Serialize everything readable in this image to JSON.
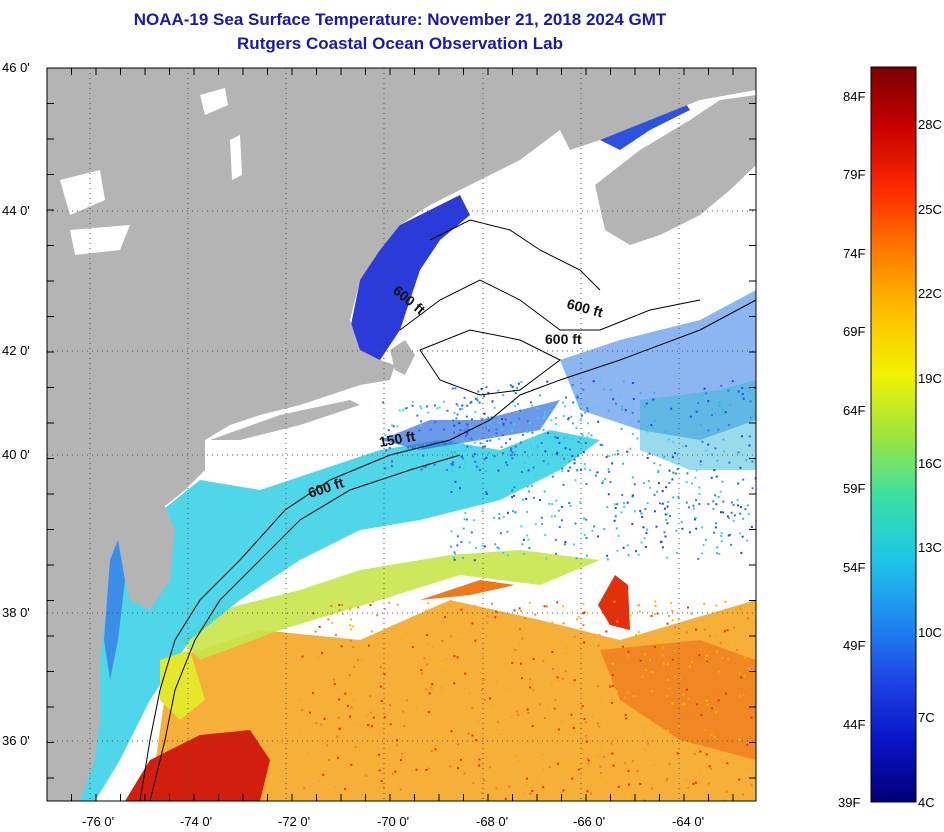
{
  "title": {
    "line1": "NOAA-19 Sea Surface Temperature:  November 21, 2018 2024 GMT",
    "line2": "Rutgers Coastal Ocean Observation Lab"
  },
  "map": {
    "latitude_labels": [
      "46 0'",
      "44 0'",
      "42 0'",
      "40 0'",
      "38 0'",
      "36 0'"
    ],
    "longitude_labels": [
      "-76 0'",
      "-74 0'",
      "-72 0'",
      "-70 0'",
      "-68 0'",
      "-66 0'",
      "-64 0'"
    ],
    "contour_labels": [
      "600 ft",
      "600 ft",
      "600 ft",
      "150 ft",
      "600 ft"
    ],
    "colors": {
      "land": "#b4b4b4",
      "no_data": "#ffffff",
      "cold": "#2b3bd9",
      "cool": "#31c8e8",
      "mid": "#8fe066",
      "warm": "#f5a623",
      "hot": "#e8300c",
      "hottest": "#c8140c"
    }
  },
  "colorbar": {
    "fahrenheit_labels": [
      "84F",
      "79F",
      "74F",
      "69F",
      "64F",
      "59F",
      "54F",
      "49F",
      "44F",
      "39F"
    ],
    "celsius_labels": [
      "28C",
      "25C",
      "22C",
      "19C",
      "16C",
      "13C",
      "10C",
      "7C",
      "4C"
    ],
    "gradient_top_to_bottom": [
      "#7a0000",
      "#c80000",
      "#ff2a00",
      "#ff7a00",
      "#ffbf00",
      "#f2f200",
      "#9fe63c",
      "#3ce0a0",
      "#1ec8e6",
      "#1e8cf0",
      "#1e46e6",
      "#0a14c8",
      "#000078"
    ]
  }
}
